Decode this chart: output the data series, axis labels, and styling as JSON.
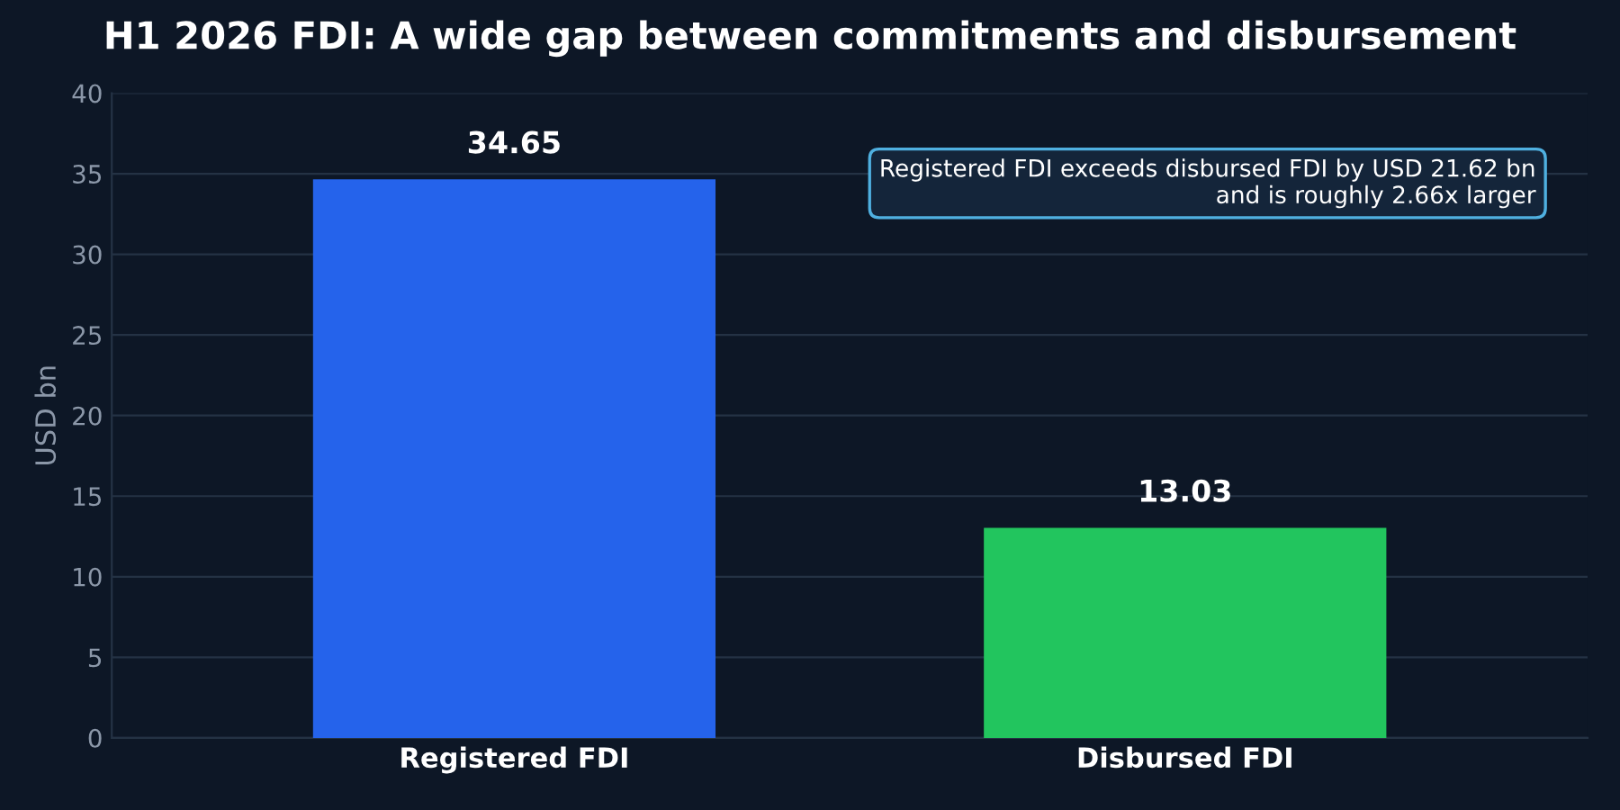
{
  "chart_data": {
    "type": "bar",
    "title": "H1 2026 FDI: A wide gap between commitments and disbursement",
    "ylabel": "USD bn",
    "categories": [
      "Registered FDI",
      "Disbursed FDI"
    ],
    "values": [
      34.65,
      13.03
    ],
    "colors": [
      "#2563eb",
      "#22c55e"
    ],
    "ylim": [
      0,
      40
    ],
    "yticks": [
      0,
      5,
      10,
      15,
      20,
      25,
      30,
      35,
      40
    ],
    "grid": "y",
    "data_labels": true,
    "legend": false,
    "annotations": [
      "Registered FDI exceeds disbursed FDI by USD 21.62 bn\nand is roughly 2.66x larger"
    ]
  }
}
